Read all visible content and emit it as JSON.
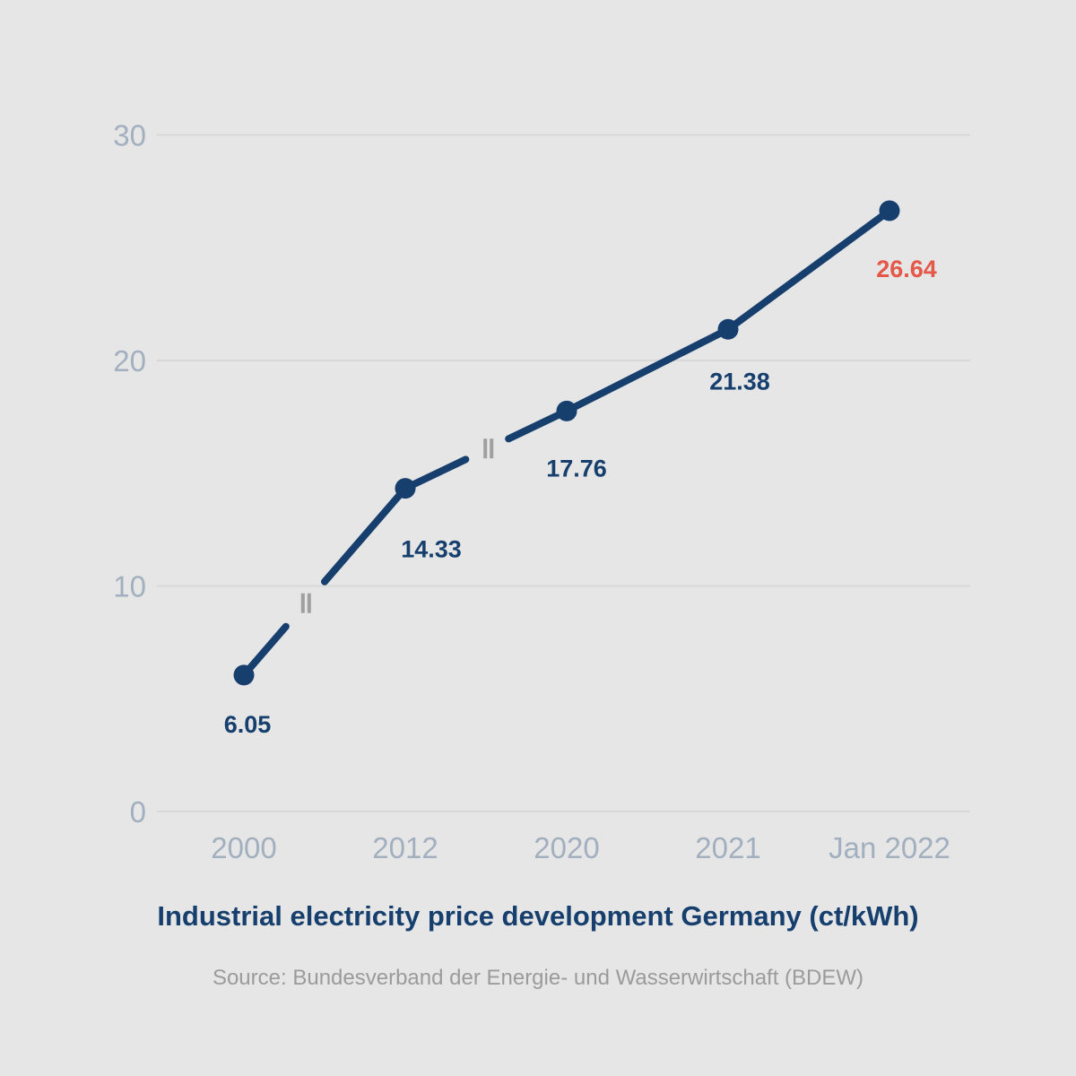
{
  "chart_data": {
    "type": "line",
    "title": "Industrial electricity price development Germany (ct/kWh)",
    "source": "Source: Bundesverband der Energie- und Wasserwirtschaft (BDEW)",
    "categories": [
      "2000",
      "2012",
      "2020",
      "2021",
      "Jan 2022"
    ],
    "values": [
      6.05,
      14.33,
      17.76,
      21.38,
      26.64
    ],
    "value_labels": [
      "6.05",
      "14.33",
      "17.76",
      "21.38",
      "26.64"
    ],
    "highlight_index": 4,
    "ylim": [
      0,
      30
    ],
    "yticks": [
      0,
      10,
      20,
      30
    ],
    "ytick_labels": [
      "0",
      "10",
      "20",
      "30"
    ],
    "grid": "horizontal gridlines at each y tick, no vertical grid",
    "legend": "none",
    "line_breaks": [
      "on segment between 2000 and 2012",
      "on segment between 2012 and 2020"
    ],
    "break_mark_glyph": "II",
    "colors": {
      "background": "#e6e6e6",
      "line": "#163f6e",
      "point": "#163f6e",
      "value_label": "#163f6e",
      "highlight_value": "#e4584a",
      "axis_text": "#a2afbf",
      "gridline": "#d8d8d8",
      "break_mark": "#a0a0a0",
      "title_text": "#163f6e",
      "source_text": "#9b9b9b"
    }
  }
}
